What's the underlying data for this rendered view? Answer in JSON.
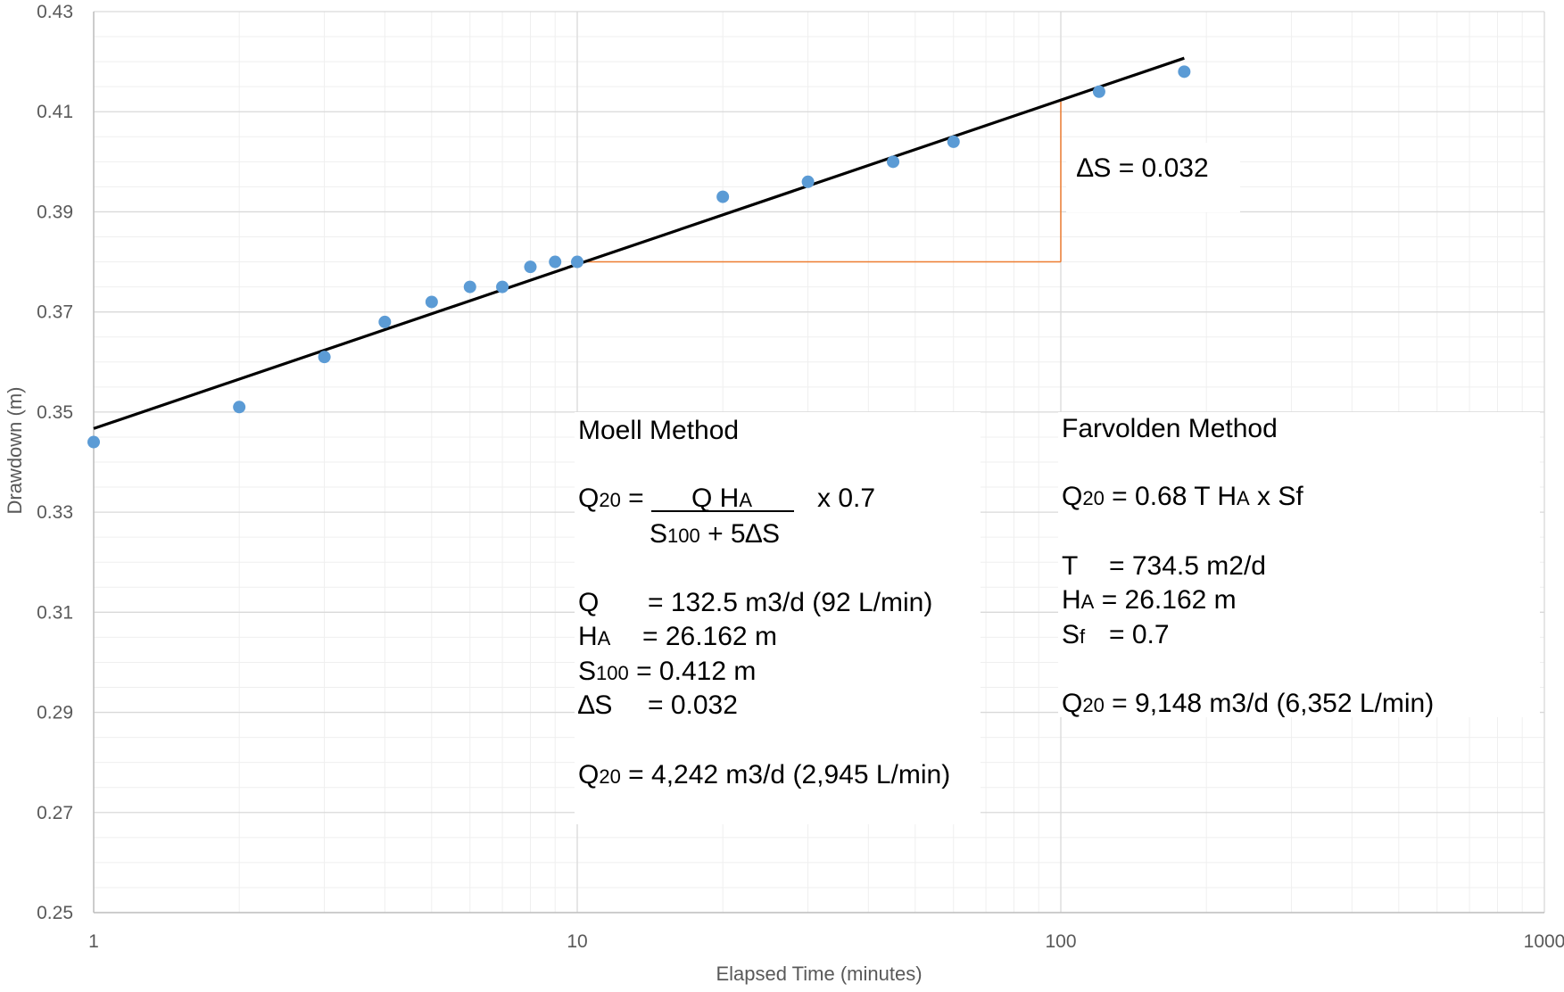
{
  "chart_data": {
    "type": "scatter",
    "title": "",
    "xlabel": "Elapsed Time (minutes)",
    "ylabel": "Drawdown (m)",
    "x_scale": "log",
    "xlim": [
      1,
      1000
    ],
    "ylim": [
      0.25,
      0.43
    ],
    "x_ticks": [
      {
        "value": 1,
        "label": "1"
      },
      {
        "value": 10,
        "label": "10"
      },
      {
        "value": 100,
        "label": "100"
      },
      {
        "value": 1000,
        "label": "1000"
      }
    ],
    "y_ticks": [
      {
        "value": 0.25,
        "label": "0.25"
      },
      {
        "value": 0.27,
        "label": "0.27"
      },
      {
        "value": 0.29,
        "label": "0.29"
      },
      {
        "value": 0.31,
        "label": "0.31"
      },
      {
        "value": 0.33,
        "label": "0.33"
      },
      {
        "value": 0.35,
        "label": "0.35"
      },
      {
        "value": 0.37,
        "label": "0.37"
      },
      {
        "value": 0.39,
        "label": "0.39"
      },
      {
        "value": 0.41,
        "label": "0.41"
      },
      {
        "value": 0.43,
        "label": "0.43"
      }
    ],
    "grid": true,
    "series": [
      {
        "color": "#5B9BD5",
        "points": [
          {
            "x": 1,
            "y": 0.344
          },
          {
            "x": 2,
            "y": 0.351
          },
          {
            "x": 3,
            "y": 0.361
          },
          {
            "x": 4,
            "y": 0.368
          },
          {
            "x": 5,
            "y": 0.372
          },
          {
            "x": 6,
            "y": 0.375
          },
          {
            "x": 7,
            "y": 0.375
          },
          {
            "x": 8,
            "y": 0.379
          },
          {
            "x": 9,
            "y": 0.38
          },
          {
            "x": 10,
            "y": 0.38
          },
          {
            "x": 20,
            "y": 0.393
          },
          {
            "x": 30,
            "y": 0.396
          },
          {
            "x": 45,
            "y": 0.4
          },
          {
            "x": 60,
            "y": 0.404
          },
          {
            "x": 120,
            "y": 0.414
          },
          {
            "x": 180,
            "y": 0.418
          }
        ]
      }
    ],
    "trendline": {
      "color": "#000000",
      "x": [
        1,
        180
      ],
      "y": [
        0.3467,
        0.4207
      ]
    },
    "delta_s_marker": {
      "color": "#ED7D31",
      "x_start": 10,
      "x_end": 100,
      "y_low": 0.38,
      "y_high": 0.412,
      "label": "∆S = 0.032"
    }
  },
  "annotations": {
    "moell": {
      "title": "Moell Method",
      "formula_q_sym": "Q",
      "formula_q_sub": "20",
      "formula_eq": " =",
      "formula_num": "Q H",
      "formula_num_sub": "A",
      "formula_factor": "x 0.7",
      "formula_den_s": "S",
      "formula_den_sub": "100",
      "formula_den_rest": " + 5∆S",
      "q_label": "Q",
      "q_value": "= 132.5 m3/d (92 L/min)",
      "ha_label": "H",
      "ha_sub": "A",
      "ha_value": "= 26.162 m",
      "s100_label": "S",
      "s100_sub": "100",
      "s100_value": " = 0.412 m",
      "ds_label": "∆S",
      "ds_value": "= 0.032",
      "result_sym": "Q",
      "result_sub": "20",
      "result_value": " = 4,242 m3/d (2,945 L/min)"
    },
    "farvolden": {
      "title": "Farvolden Method",
      "formula_q_sym": "Q",
      "formula_q_sub": "20",
      "formula_mid": " = 0.68 T H",
      "formula_h_sub": "A",
      "formula_end": " x Sf",
      "t_label": "T",
      "t_value": "= 734.5 m2/d",
      "ha_label": "H",
      "ha_sub": "A",
      "ha_value": " = 26.162 m",
      "sf_label": "S",
      "sf_sub": "f",
      "sf_value": "= 0.7",
      "result_sym": "Q",
      "result_sub": "20",
      "result_value": " = 9,148 m3/d  (6,352 L/min)"
    }
  }
}
